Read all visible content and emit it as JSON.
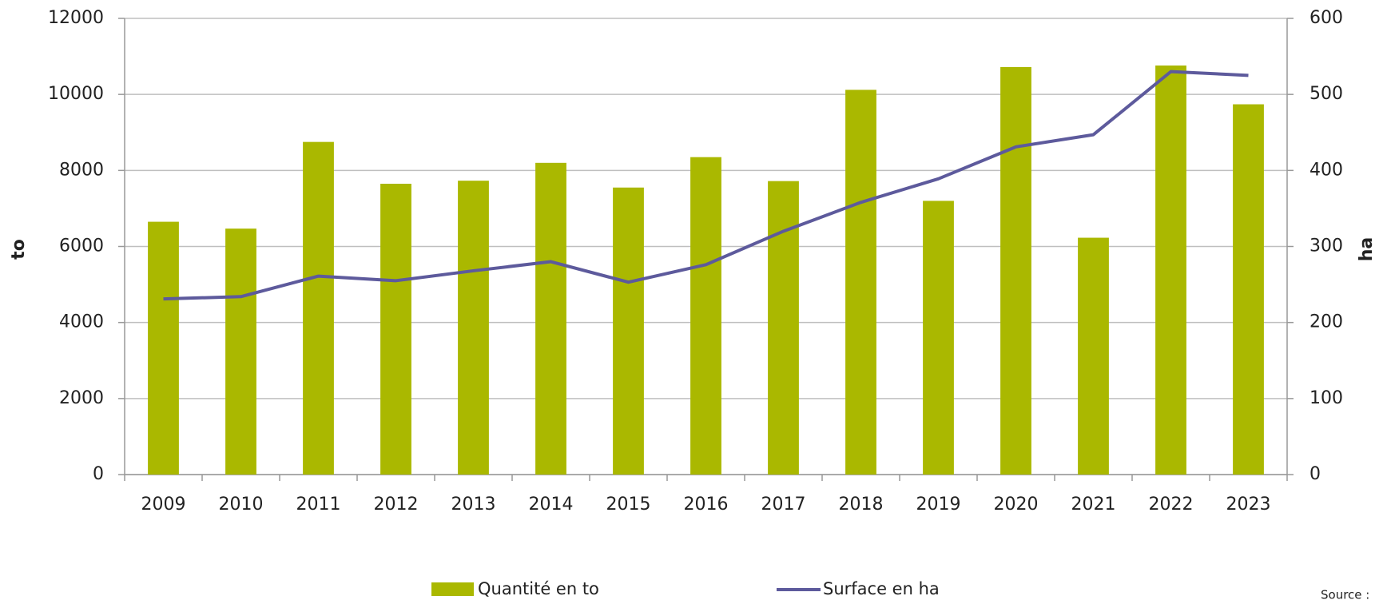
{
  "chart_data": {
    "type": "bar_line",
    "categories": [
      "2009",
      "2010",
      "2011",
      "2012",
      "2013",
      "2014",
      "2015",
      "2016",
      "2017",
      "2018",
      "2019",
      "2020",
      "2021",
      "2022",
      "2023"
    ],
    "series": [
      {
        "name": "Quantité en to",
        "type": "bar",
        "color": "#aab800",
        "axis": "y",
        "values": [
          6650,
          6470,
          8750,
          7650,
          7730,
          8200,
          7550,
          8350,
          7720,
          10120,
          7200,
          10720,
          6230,
          10760,
          9740
        ]
      },
      {
        "name": "Surface en ha",
        "type": "line",
        "color": "#5d5a9c",
        "axis": "y2",
        "values": [
          231,
          234,
          261,
          255,
          268,
          280,
          253,
          276,
          320,
          358,
          389,
          431,
          447,
          530,
          525
        ]
      }
    ],
    "y_label": "to",
    "y2_label": "ha",
    "ylim": [
      0,
      12000
    ],
    "yticks": [
      0,
      2000,
      4000,
      6000,
      8000,
      10000,
      12000
    ],
    "y2lim": [
      0,
      600
    ],
    "y2ticks": [
      0,
      100,
      200,
      300,
      400,
      500,
      600
    ],
    "grid": true,
    "legend": "bottom",
    "source": "Source :"
  }
}
